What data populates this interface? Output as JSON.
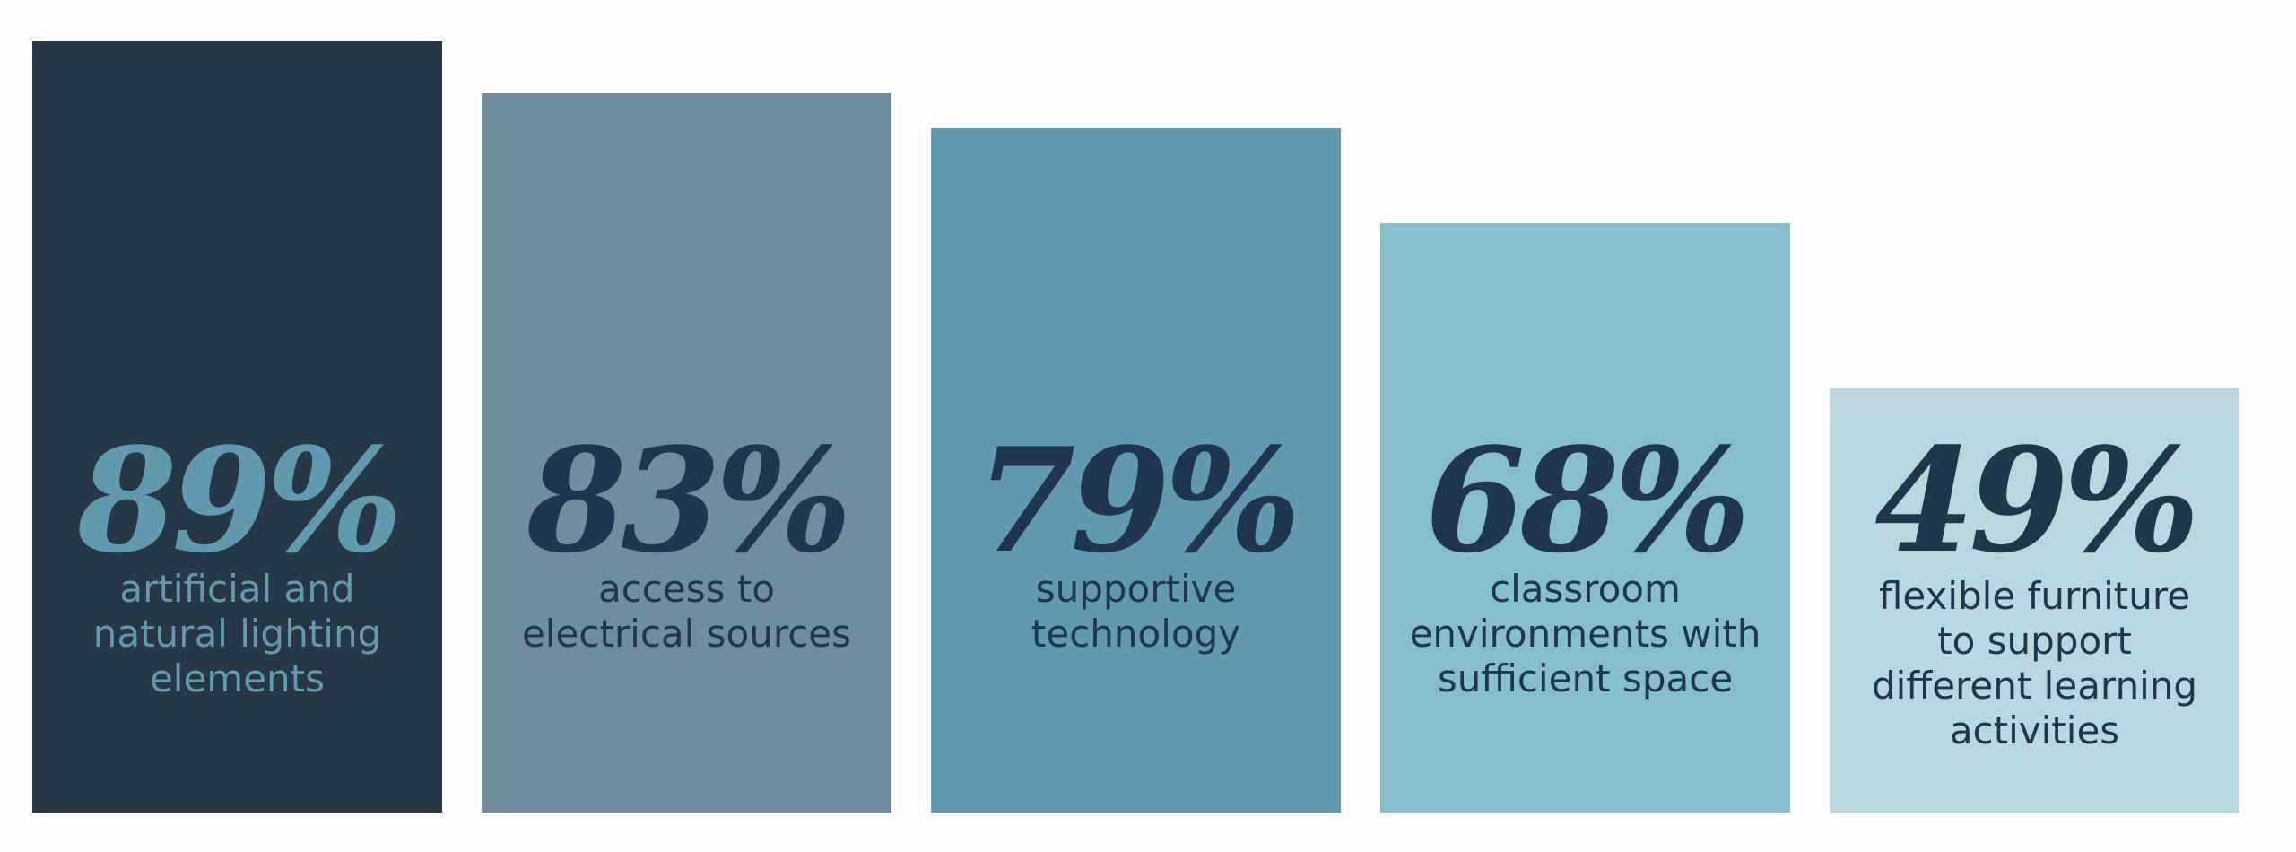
{
  "chart_data": {
    "type": "bar",
    "categories": [
      "artificial and\nnatural lighting\nelements",
      "access to\nelectrical sources",
      "supportive\ntechnology",
      "classroom\nenvironments with\nsufficient space",
      "flexible furniture\nto support\ndifferent learning\nactivities"
    ],
    "values": [
      89,
      83,
      79,
      68,
      49
    ],
    "value_labels": [
      "89%",
      "83%",
      "79%",
      "68%",
      "49%"
    ],
    "colors": [
      "#263746",
      "#728c9f",
      "#6199ae",
      "#86bece",
      "#bad7df"
    ]
  }
}
